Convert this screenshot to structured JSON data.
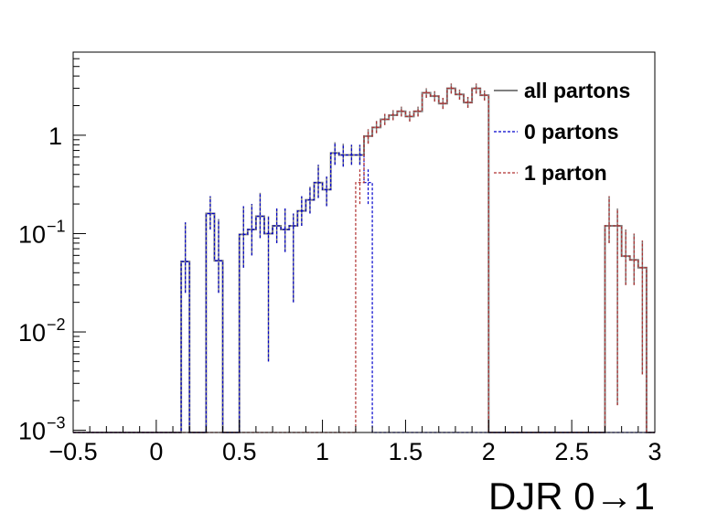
{
  "chart_data": {
    "type": "step-histogram",
    "title": "",
    "xlabel": "DJR 0→1",
    "ylabel": "",
    "xlim": [
      -0.5,
      3.0
    ],
    "ylim": [
      0.00095,
      7.0
    ],
    "yscale": "log",
    "x_ticks": [
      "−0.5",
      "0",
      "0.5",
      "1",
      "1.5",
      "2",
      "2.5",
      "3"
    ],
    "x_tick_values": [
      -0.5,
      0,
      0.5,
      1,
      1.5,
      2,
      2.5,
      3
    ],
    "y_ticks": [
      {
        "value": 0.001,
        "base": "10",
        "exp": "−3"
      },
      {
        "value": 0.01,
        "base": "10",
        "exp": "−2"
      },
      {
        "value": 0.1,
        "base": "10",
        "exp": "−1"
      },
      {
        "value": 1,
        "base": "1",
        "exp": ""
      }
    ],
    "bin_width": 0.05,
    "legend_position": "top-right",
    "series": [
      {
        "name": "all partons",
        "color": "#808080",
        "style": "solid",
        "bins": [
          [
            0.15,
            0.052,
            0.025,
            0.13
          ],
          [
            0.3,
            0.16,
            0.11,
            0.24
          ],
          [
            0.35,
            0.053,
            0.025,
            0.14
          ],
          [
            0.5,
            0.098,
            0.045,
            0.19
          ],
          [
            0.55,
            0.11,
            0.06,
            0.2
          ],
          [
            0.6,
            0.15,
            0.09,
            0.26
          ],
          [
            0.65,
            0.1,
            0.005,
            0.15
          ],
          [
            0.7,
            0.12,
            0.08,
            0.18
          ],
          [
            0.75,
            0.11,
            0.065,
            0.18
          ],
          [
            0.8,
            0.12,
            0.02,
            0.16
          ],
          [
            0.85,
            0.17,
            0.12,
            0.24
          ],
          [
            0.9,
            0.22,
            0.16,
            0.3
          ],
          [
            0.95,
            0.33,
            0.23,
            0.5
          ],
          [
            1.0,
            0.28,
            0.19,
            0.38
          ],
          [
            1.05,
            0.66,
            0.5,
            0.85
          ],
          [
            1.1,
            0.63,
            0.48,
            0.82
          ],
          [
            1.15,
            0.63,
            0.5,
            0.8
          ],
          [
            1.2,
            0.63,
            0.5,
            0.8
          ],
          [
            1.25,
            0.98,
            0.82,
            1.15
          ],
          [
            1.3,
            1.2,
            1.05,
            1.4
          ],
          [
            1.35,
            1.45,
            1.27,
            1.65
          ],
          [
            1.4,
            1.6,
            1.42,
            1.8
          ],
          [
            1.45,
            1.75,
            1.55,
            1.95
          ],
          [
            1.5,
            1.55,
            1.38,
            1.75
          ],
          [
            1.55,
            1.75,
            1.55,
            1.95
          ],
          [
            1.6,
            2.7,
            2.4,
            3.0
          ],
          [
            1.65,
            2.5,
            2.2,
            2.8
          ],
          [
            1.7,
            2.1,
            1.85,
            2.4
          ],
          [
            1.75,
            3.0,
            2.65,
            3.35
          ],
          [
            1.8,
            2.6,
            2.3,
            2.9
          ],
          [
            1.85,
            2.15,
            1.9,
            2.45
          ],
          [
            1.9,
            3.0,
            2.65,
            3.35
          ],
          [
            1.95,
            2.55,
            2.25,
            2.85
          ],
          [
            2.7,
            0.12,
            0.08,
            0.24
          ],
          [
            2.75,
            0.12,
            0.0018,
            0.18
          ],
          [
            2.8,
            0.059,
            0.03,
            0.11
          ],
          [
            2.85,
            0.054,
            0.03,
            0.1
          ],
          [
            2.9,
            0.045,
            0.0037,
            0.085
          ]
        ]
      },
      {
        "name": "0 partons",
        "color": "#0000cc",
        "style": "dashed",
        "bins": [
          [
            0.15,
            0.052,
            0.025,
            0.13
          ],
          [
            0.3,
            0.16,
            0.11,
            0.24
          ],
          [
            0.35,
            0.053,
            0.025,
            0.14
          ],
          [
            0.5,
            0.098,
            0.045,
            0.19
          ],
          [
            0.55,
            0.11,
            0.06,
            0.2
          ],
          [
            0.6,
            0.15,
            0.09,
            0.26
          ],
          [
            0.65,
            0.1,
            0.005,
            0.15
          ],
          [
            0.7,
            0.12,
            0.08,
            0.18
          ],
          [
            0.75,
            0.11,
            0.065,
            0.18
          ],
          [
            0.8,
            0.12,
            0.02,
            0.16
          ],
          [
            0.85,
            0.17,
            0.12,
            0.24
          ],
          [
            0.9,
            0.22,
            0.16,
            0.3
          ],
          [
            0.95,
            0.33,
            0.23,
            0.5
          ],
          [
            1.0,
            0.28,
            0.19,
            0.38
          ],
          [
            1.05,
            0.66,
            0.5,
            0.85
          ],
          [
            1.1,
            0.63,
            0.48,
            0.82
          ],
          [
            1.15,
            0.63,
            0.5,
            0.8
          ],
          [
            1.2,
            0.63,
            0.5,
            0.8
          ],
          [
            1.25,
            0.33,
            0.2,
            0.45
          ]
        ]
      },
      {
        "name": "1 parton",
        "color": "#b03030",
        "style": "dashed",
        "bins": [
          [
            1.2,
            0.33,
            0.2,
            0.45
          ],
          [
            1.25,
            0.98,
            0.82,
            1.15
          ],
          [
            1.3,
            1.2,
            1.05,
            1.4
          ],
          [
            1.35,
            1.45,
            1.27,
            1.65
          ],
          [
            1.4,
            1.6,
            1.42,
            1.8
          ],
          [
            1.45,
            1.75,
            1.55,
            1.95
          ],
          [
            1.5,
            1.55,
            1.38,
            1.75
          ],
          [
            1.55,
            1.75,
            1.55,
            1.95
          ],
          [
            1.6,
            2.7,
            2.4,
            3.0
          ],
          [
            1.65,
            2.5,
            2.2,
            2.8
          ],
          [
            1.7,
            2.1,
            1.85,
            2.4
          ],
          [
            1.75,
            3.0,
            2.65,
            3.35
          ],
          [
            1.8,
            2.6,
            2.3,
            2.9
          ],
          [
            1.85,
            2.15,
            1.9,
            2.45
          ],
          [
            1.9,
            3.0,
            2.65,
            3.35
          ],
          [
            1.95,
            2.55,
            2.25,
            2.85
          ],
          [
            2.7,
            0.12,
            0.08,
            0.24
          ],
          [
            2.75,
            0.12,
            0.0018,
            0.18
          ],
          [
            2.8,
            0.059,
            0.03,
            0.11
          ],
          [
            2.85,
            0.054,
            0.03,
            0.1
          ],
          [
            2.9,
            0.045,
            0.0037,
            0.085
          ]
        ]
      }
    ]
  }
}
